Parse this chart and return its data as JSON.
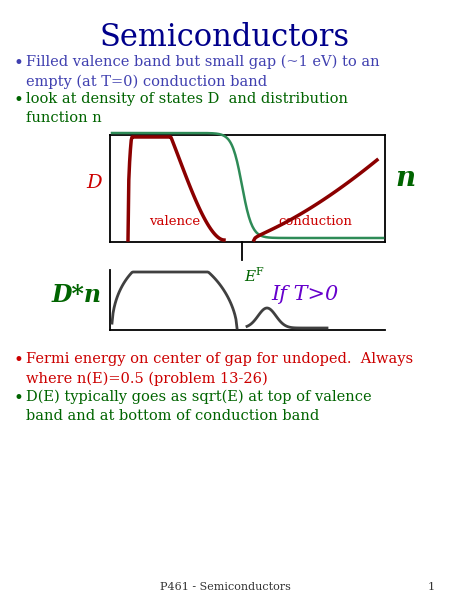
{
  "title": "Semiconductors",
  "title_color": "#00008B",
  "title_fontsize": 22,
  "bullet1_color": "#4040B0",
  "bullet1_text": "Filled valence band but small gap (~1 eV) to an\nempty (at T=0) conduction band",
  "bullet2_color": "#006400",
  "bullet2_text": "look at density of states D  and distribution\nfunction n",
  "bullet3_color": "#CC0000",
  "bullet3_text": "Fermi energy on center of gap for undoped.  Always\nwhere n(E)=0.5 (problem 13-26)",
  "bullet4_color": "#006400",
  "bullet4_text": "D(E) typically goes as sqrt(E) at top of valence\nband and at bottom of conduction band",
  "footer": "P461 - Semiconductors",
  "footer_num": "1",
  "label_D_color": "#CC0000",
  "label_n_color": "#006400",
  "label_Dn_color": "#006400",
  "label_IfT_color": "#6600CC",
  "label_valence_color": "#CC0000",
  "label_conduction_color": "#CC0000",
  "label_EF_color": "#006400",
  "curve_dark_red": "#8B0000",
  "curve_green": "#2E8B57",
  "curve_dark": "#404040",
  "bg_color": "#FFFFFF"
}
